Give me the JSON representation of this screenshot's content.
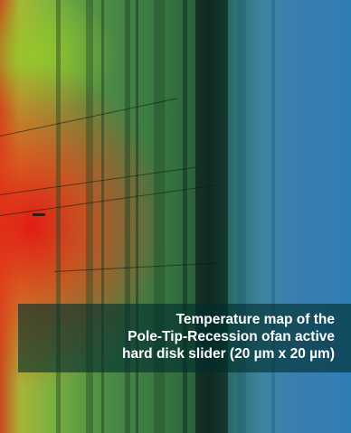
{
  "image": {
    "subject": "thermal-map",
    "colors": {
      "hot": "#e0241a",
      "warm": "#a9b437",
      "mid": "#3e7c44",
      "cool": "#2f7eb6",
      "dark_band": "#143024",
      "caption_bg": "#002d2d"
    }
  },
  "caption": {
    "line1": "Temperature map of the",
    "line2": "Pole-Tip-Recession ofan active",
    "line3": "hard disk slider (20 µm x 20 µm)"
  }
}
